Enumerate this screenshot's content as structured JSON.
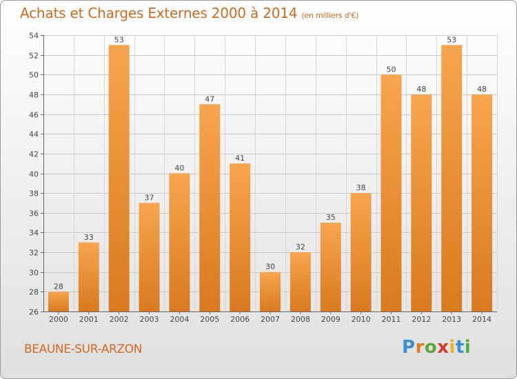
{
  "header": {
    "title": "Achats et Charges Externes 2000 à 2014",
    "subtitle": "(en milliers d'€)"
  },
  "footer": {
    "town": "BEAUNE-SUR-ARZON",
    "logo": "Proxiti"
  },
  "colors": {
    "bar_light": "#f7a54e",
    "bar_dark": "#d97a1f",
    "accent": "#d2691e"
  },
  "chart_data": {
    "type": "bar",
    "title": "Achats et Charges Externes 2000 à 2014",
    "subtitle": "(en milliers d'€)",
    "xlabel": "",
    "ylabel": "",
    "categories": [
      "2000",
      "2001",
      "2002",
      "2003",
      "2004",
      "2005",
      "2006",
      "2007",
      "2008",
      "2009",
      "2010",
      "2011",
      "2012",
      "2013",
      "2014"
    ],
    "values": [
      28,
      33,
      53,
      37,
      40,
      47,
      41,
      30,
      32,
      35,
      38,
      50,
      48,
      53,
      48
    ],
    "ylim": [
      26,
      54
    ],
    "yticks": [
      26,
      28,
      30,
      32,
      34,
      36,
      38,
      40,
      42,
      44,
      46,
      48,
      50,
      52,
      54
    ],
    "grid": true,
    "data_labels": true
  }
}
